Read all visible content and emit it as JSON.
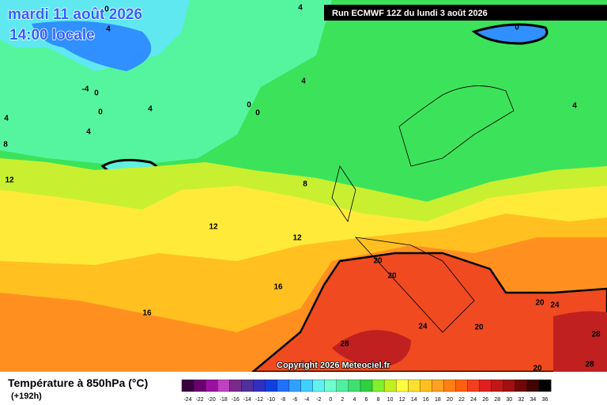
{
  "header": {
    "date": "mardi 11 août 2026",
    "time": "14:00 locale",
    "run": "Run ECMWF 12Z du lundi 3 août 2026"
  },
  "copyright": "Copyright 2026 Meteociel.fr",
  "legend": {
    "title": "Température à 850hPa (°C)",
    "subtitle": "(+192h)",
    "labels": [
      -24,
      -22,
      -20,
      -18,
      -16,
      -14,
      -12,
      -10,
      -8,
      -6,
      -4,
      -2,
      0,
      2,
      4,
      6,
      8,
      10,
      12,
      14,
      16,
      18,
      20,
      22,
      24,
      26,
      28,
      30,
      32,
      34,
      36
    ],
    "colors": [
      "#3a0040",
      "#6a0070",
      "#9a10a0",
      "#c040c0",
      "#7a2a8a",
      "#50309a",
      "#3030c0",
      "#1040e0",
      "#2070ff",
      "#30a0ff",
      "#40d0ff",
      "#60f0f0",
      "#70ffd0",
      "#50f0a0",
      "#40e070",
      "#30d040",
      "#80f030",
      "#c0f020",
      "#ffff40",
      "#ffe030",
      "#ffc020",
      "#ffa020",
      "#ff8010",
      "#ff6010",
      "#f04020",
      "#e02020",
      "#c01818",
      "#a01010",
      "#700808",
      "#400404",
      "#000000"
    ]
  },
  "contours": [
    "0",
    "4",
    "-4",
    "0",
    "0",
    "4",
    "4",
    "0",
    "0",
    "4",
    "8",
    "12",
    "4",
    "4",
    "0",
    "4",
    "8",
    "12",
    "12",
    "16",
    "16",
    "20",
    "20",
    "24",
    "20",
    "20",
    "24",
    "28",
    "28",
    "28",
    "20"
  ]
}
